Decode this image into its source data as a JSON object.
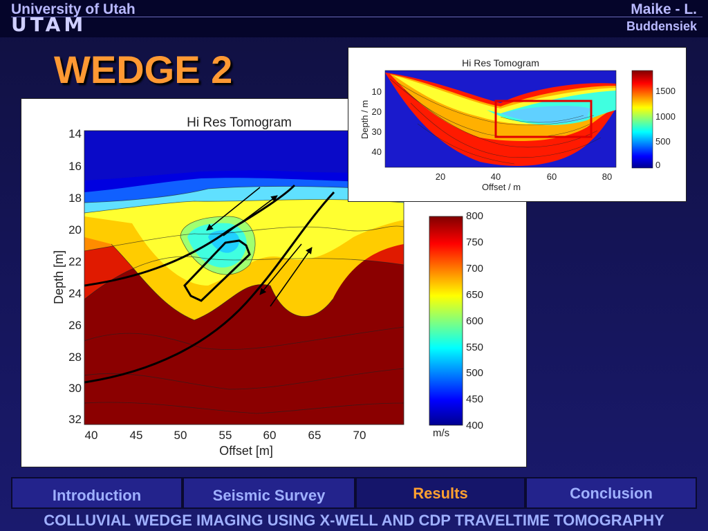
{
  "header": {
    "university": "University of Utah",
    "lab": "UTAM",
    "author_line1": "Maike - L.",
    "author_line2": "Buddensiek"
  },
  "slide_title": "WEDGE 2",
  "main_figure": {
    "title": "Hi Res Tomogram",
    "xlabel": "Offset [m]",
    "ylabel": "Depth [m]",
    "x_ticks": [
      "40",
      "45",
      "50",
      "55",
      "60",
      "65",
      "70"
    ],
    "y_ticks": [
      "14",
      "16",
      "18",
      "20",
      "22",
      "24",
      "26",
      "28",
      "30",
      "32"
    ],
    "colorbar_ticks": [
      "800",
      "750",
      "700",
      "650",
      "600",
      "550",
      "500",
      "450",
      "400"
    ],
    "colorbar_unit": "m/s"
  },
  "inset_figure": {
    "title": "Hi Res Tomogram",
    "xlabel": "Offset / m",
    "ylabel": "Depth / m",
    "x_ticks": [
      "20",
      "40",
      "60",
      "80"
    ],
    "y_ticks": [
      "10",
      "20",
      "30",
      "40"
    ],
    "colorbar_ticks": [
      "1500",
      "1000",
      "500",
      "0"
    ]
  },
  "chart_data": [
    {
      "type": "heatmap",
      "title": "Hi Res Tomogram",
      "xlabel": "Offset [m]",
      "ylabel": "Depth [m]",
      "xlim": [
        38,
        75
      ],
      "ylim": [
        32,
        14
      ],
      "colorbar_range": [
        400,
        800
      ],
      "colorbar_unit": "m/s",
      "colormap": "jet"
    },
    {
      "type": "heatmap",
      "title": "Hi Res Tomogram",
      "xlabel": "Offset / m",
      "ylabel": "Depth / m",
      "xlim": [
        0,
        85
      ],
      "ylim": [
        48,
        0
      ],
      "colorbar_range": [
        0,
        1800
      ],
      "colormap": "jet"
    }
  ],
  "nav": {
    "items": [
      "Introduction",
      "Seismic Survey",
      "Results",
      "Conclusion"
    ],
    "active": "Results"
  },
  "footer": "COLLUVIAL WEDGE IMAGING USING X-WELL AND CDP TRAVELTIME TOMOGRAPHY",
  "colors": {
    "title": "#ff9933",
    "nav_text": "#9fb0ff",
    "nav_active": "#ffa030",
    "highlight_box": "#e00000"
  }
}
